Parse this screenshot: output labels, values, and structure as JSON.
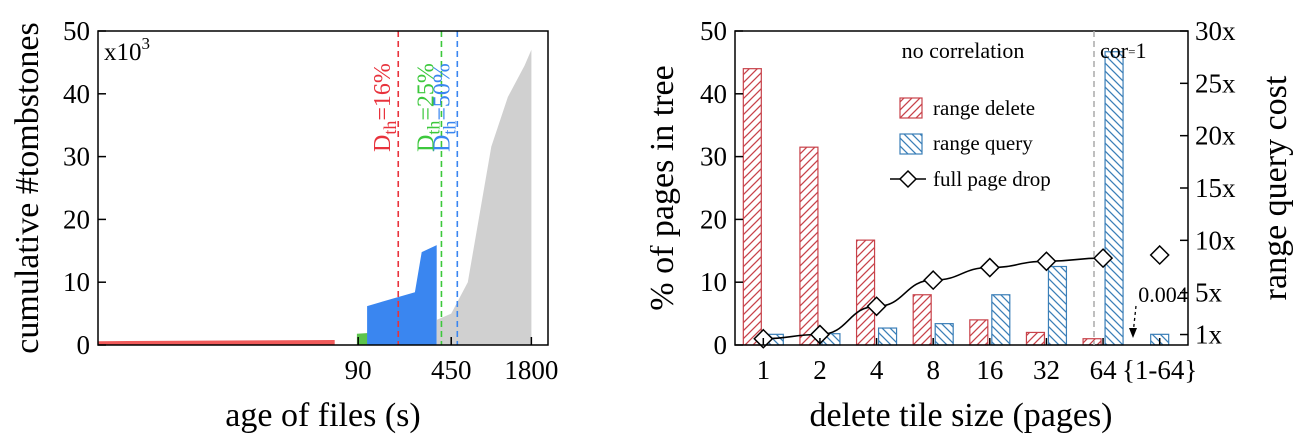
{
  "chart_data": [
    {
      "type": "area",
      "xlabel": "age of files (s)",
      "ylabel": "cumulative #tombstones",
      "y_multiplier_label": "x10",
      "y_multiplier_exp": "3",
      "ylim": [
        0,
        50
      ],
      "yticks": [
        0,
        10,
        20,
        30,
        40,
        50
      ],
      "xticks": [
        "90",
        "450",
        "1800"
      ],
      "xscale": "log",
      "thresholds": [
        {
          "label_main": "D",
          "label_sub": "th",
          "label_rest": "=16%",
          "x": 180,
          "color": "#e8323c"
        },
        {
          "label_main": "D",
          "label_sub": "th",
          "label_rest": "=25%",
          "x": 380,
          "color": "#3cc83c"
        },
        {
          "label_main": "D",
          "label_sub": "th",
          "label_rest": "=50%",
          "x": 500,
          "color": "#3a86f0"
        }
      ],
      "series": [
        {
          "color": "#f05a5a",
          "x": [
            1,
            60
          ],
          "y": [
            0.6,
            0.8
          ]
        },
        {
          "color": "#5cc44c",
          "x": [
            88,
            210,
            240,
            275
          ],
          "y": [
            1.8,
            2.3,
            3.5,
            4.3
          ]
        },
        {
          "color": "#3a86f0",
          "x": [
            105,
            240,
            270,
            350
          ],
          "y": [
            6.2,
            8.4,
            14.8,
            15.9
          ]
        },
        {
          "color": "#d0d0d0",
          "x": [
            350,
            450,
            600,
            900,
            1200,
            1600,
            1800
          ],
          "y": [
            4.0,
            5.0,
            10.0,
            31.6,
            39.5,
            44.5,
            47.0
          ]
        }
      ]
    },
    {
      "type": "bar",
      "xlabel": "delete tile size (pages)",
      "ylabel": "% of pages in tree",
      "ylabel_right": "range query cost",
      "categories": [
        "1",
        "2",
        "4",
        "8",
        "16",
        "32",
        "64",
        "{1-64}"
      ],
      "ylim": [
        0,
        50
      ],
      "yticks": [
        0,
        10,
        20,
        30,
        40,
        50
      ],
      "yticks_right": [
        "1x",
        "5x",
        "10x",
        "15x",
        "20x",
        "25x",
        "30x"
      ],
      "yticks_right_values": [
        1,
        5,
        10,
        15,
        20,
        25,
        30
      ],
      "ylim_right": [
        0,
        30
      ],
      "annotation_left": "no correlation",
      "annotation_right": "cor",
      "annotation_right_eq": "=",
      "annotation_right_val": "1",
      "annotation_value": "0.004",
      "legend_position": "upper-center",
      "series": [
        {
          "name": "range delete",
          "color": "#c8424a",
          "values": [
            44,
            31.5,
            16.7,
            8,
            4,
            2,
            1,
            null
          ]
        },
        {
          "name": "range query",
          "color": "#3b7fb8",
          "values": [
            1.7,
            1.8,
            2.7,
            3.4,
            8,
            12.5,
            46.7,
            1.7
          ]
        },
        {
          "name": "full page drop",
          "color": "#000000",
          "values": [
            null,
            1.0,
            3.7,
            6.2,
            7.4,
            8.0,
            8.3,
            8.6
          ]
        }
      ]
    }
  ]
}
